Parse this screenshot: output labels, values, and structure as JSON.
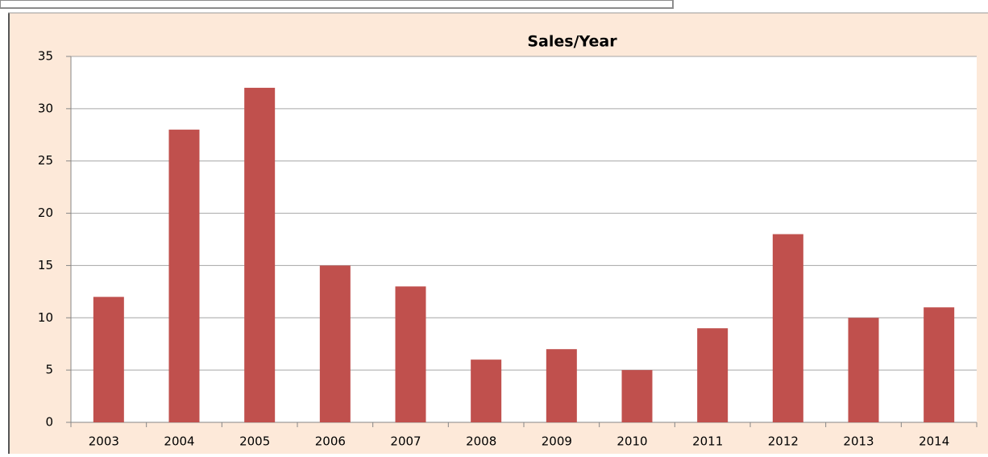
{
  "chart_data": {
    "type": "bar",
    "title": "Sales/Year",
    "categories": [
      "2003",
      "2004",
      "2005",
      "2006",
      "2007",
      "2008",
      "2009",
      "2010",
      "2011",
      "2012",
      "2013",
      "2014"
    ],
    "values": [
      12,
      28,
      32,
      15,
      13,
      6,
      7,
      5,
      9,
      18,
      10,
      11
    ],
    "color": "#c0504d",
    "ylim": [
      0,
      35
    ],
    "yticks": [
      0,
      5,
      10,
      15,
      20,
      25,
      30,
      35
    ],
    "grid": true
  }
}
